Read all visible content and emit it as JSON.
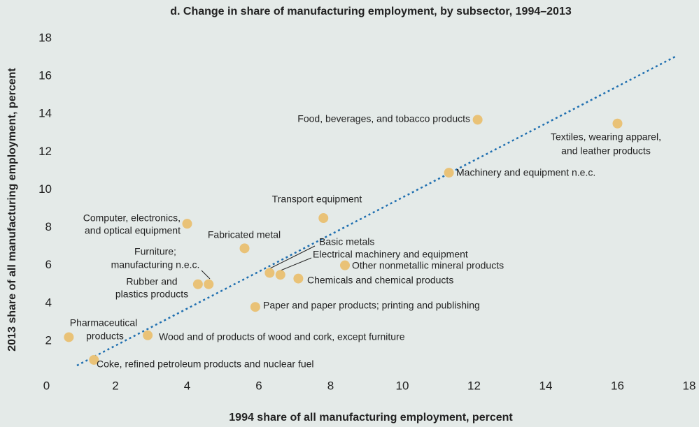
{
  "chart_data": {
    "type": "scatter",
    "title": "d. Change in share of manufacturing employment, by subsector, 1994–2013",
    "xlabel": "1994 share of all manufacturing employment, percent",
    "ylabel": "2013 share of all manufacturing employment, percent",
    "color": "#e9c277",
    "xlim": [
      0,
      18
    ],
    "ylim": [
      0,
      18
    ],
    "xticks": [
      0,
      2,
      4,
      6,
      8,
      10,
      12,
      14,
      16,
      18
    ],
    "yticks": [
      2,
      4,
      6,
      8,
      10,
      12,
      14,
      16,
      18
    ],
    "labels": [
      [
        "Food, beverages, and tobacco products"
      ],
      [
        "Textiles, wearing apparel,",
        "and leather products"
      ],
      [
        "Machinery and equipment n.e.c."
      ],
      [
        "Transport equipment"
      ],
      [
        "Computer, electronics,",
        "and optical equipment"
      ],
      [
        "Fabricated metal"
      ],
      [
        "Basic metals"
      ],
      [
        "Electrical machinery and equipment"
      ],
      [
        "Other nonmetallic mineral products"
      ],
      [
        "Chemicals and chemical products"
      ],
      [
        "Furniture;",
        "manufacturing n.e.c."
      ],
      [
        "Rubber and",
        "plastics products"
      ],
      [
        "Paper and paper products; printing and publishing"
      ],
      [
        "Pharmaceutical",
        "products"
      ],
      [
        "Wood and of products of wood and cork, except furniture"
      ],
      [
        "Coke, refined petroleum products and nuclear fuel"
      ]
    ],
    "x": [
      12.1,
      16.0,
      11.3,
      7.8,
      4.0,
      5.6,
      6.3,
      6.6,
      8.4,
      7.1,
      4.6,
      4.3,
      5.9,
      0.7,
      2.9,
      1.4
    ],
    "y": [
      13.7,
      13.5,
      10.9,
      8.5,
      8.2,
      6.9,
      5.6,
      5.5,
      6.0,
      5.3,
      5.0,
      5.0,
      3.8,
      2.2,
      2.3,
      1.0
    ]
  }
}
